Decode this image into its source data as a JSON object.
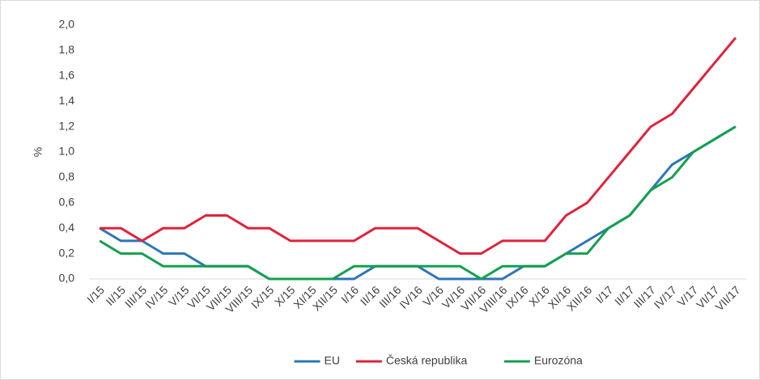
{
  "chart_data": {
    "type": "line",
    "ylabel": "%",
    "categories": [
      "I/15",
      "II/15",
      "III/15",
      "IV/15",
      "V/15",
      "VI/15",
      "VII/15",
      "VIII/15",
      "IX/15",
      "X/15",
      "XI/15",
      "XII/15",
      "I/16",
      "II/16",
      "III/16",
      "IV/16",
      "V/16",
      "VI/16",
      "VII/16",
      "VIII/16",
      "IX/16",
      "X/16",
      "XI/16",
      "XII/16",
      "I/17",
      "II/17",
      "III/17",
      "IV/17",
      "V/17",
      "VI/17",
      "VII/17"
    ],
    "series": [
      {
        "name": "EU",
        "color": "#2e75b6",
        "values": [
          0.4,
          0.3,
          0.3,
          0.2,
          0.2,
          0.1,
          0.1,
          0.1,
          0.0,
          0.0,
          0.0,
          0.0,
          0.0,
          0.1,
          0.1,
          0.1,
          0.0,
          0.0,
          0.0,
          0.0,
          0.1,
          0.1,
          0.2,
          0.3,
          0.4,
          0.5,
          0.7,
          0.9,
          1.0,
          1.1,
          1.2
        ]
      },
      {
        "name": "Česká republika",
        "color": "#e0223a",
        "values": [
          0.4,
          0.4,
          0.3,
          0.4,
          0.4,
          0.5,
          0.5,
          0.4,
          0.4,
          0.3,
          0.3,
          0.3,
          0.3,
          0.4,
          0.4,
          0.4,
          0.3,
          0.2,
          0.2,
          0.3,
          0.3,
          0.3,
          0.5,
          0.6,
          0.8,
          1.0,
          1.2,
          1.3,
          1.5,
          1.7,
          1.9
        ]
      },
      {
        "name": "Eurozóna",
        "color": "#12a04c",
        "values": [
          0.3,
          0.2,
          0.2,
          0.1,
          0.1,
          0.1,
          0.1,
          0.1,
          0.0,
          0.0,
          0.0,
          0.0,
          0.1,
          0.1,
          0.1,
          0.1,
          0.1,
          0.1,
          0.0,
          0.1,
          0.1,
          0.1,
          0.2,
          0.2,
          0.4,
          0.5,
          0.7,
          0.8,
          1.0,
          1.1,
          1.2
        ]
      }
    ],
    "ylim": [
      0,
      2
    ],
    "yticks": [
      {
        "value": 0,
        "label": "0,0"
      },
      {
        "value": 0.2,
        "label": "0,2"
      },
      {
        "value": 0.4,
        "label": "0,4"
      },
      {
        "value": 0.6,
        "label": "0,6"
      },
      {
        "value": 0.8,
        "label": "0,8"
      },
      {
        "value": 1.0,
        "label": "1,0"
      },
      {
        "value": 1.2,
        "label": "1,2"
      },
      {
        "value": 1.4,
        "label": "1,4"
      },
      {
        "value": 1.6,
        "label": "1,6"
      },
      {
        "value": 1.8,
        "label": "1,8"
      },
      {
        "value": 2.0,
        "label": "2,0"
      }
    ],
    "legend": "bottom"
  }
}
